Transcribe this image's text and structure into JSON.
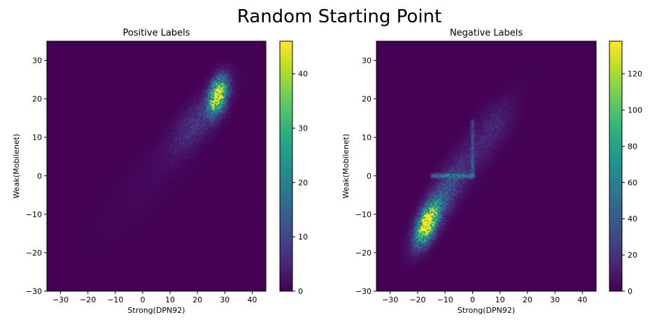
{
  "chart_data": {
    "suptitle": "Random Starting Point",
    "panels": [
      {
        "type": "heatmap",
        "title": "Positive Labels",
        "xlabel": "Strong(DPN92)",
        "ylabel": "Weak(Mobilenet)",
        "xlim": [
          -35,
          45
        ],
        "ylim": [
          -30,
          35
        ],
        "xticks": [
          -30,
          -20,
          -10,
          0,
          10,
          20,
          30,
          40
        ],
        "yticks": [
          -30,
          -20,
          -10,
          0,
          10,
          20,
          30
        ],
        "colormap": "viridis",
        "colorbar": {
          "min": 0,
          "max": 46,
          "ticks": [
            0,
            10,
            20,
            30,
            40
          ]
        },
        "clusters": [
          {
            "x": 27.5,
            "y": 21,
            "sx": 2.2,
            "sy": 3.0,
            "rho": 0.35,
            "peak": 46
          },
          {
            "x": 21,
            "y": 15,
            "sx": 6.5,
            "sy": 5.5,
            "rho": 0.75,
            "peak": 7
          },
          {
            "x": 6,
            "y": 2,
            "sx": 14,
            "sy": 11,
            "rho": 0.85,
            "peak": 1.2
          }
        ],
        "segments": []
      },
      {
        "type": "heatmap",
        "title": "Negative Labels",
        "xlabel": "Strong(DPN92)",
        "ylabel": "Weak(Mobilenet)",
        "xlim": [
          -35,
          45
        ],
        "ylim": [
          -30,
          35
        ],
        "xticks": [
          -30,
          -20,
          -10,
          0,
          10,
          20,
          30,
          40
        ],
        "yticks": [
          -30,
          -20,
          -10,
          0,
          10,
          20,
          30
        ],
        "colormap": "viridis",
        "colorbar": {
          "min": 0,
          "max": 138,
          "ticks": [
            0,
            20,
            40,
            60,
            80,
            100,
            120
          ]
        },
        "clusters": [
          {
            "x": -16.5,
            "y": -12.5,
            "sx": 2.6,
            "sy": 3.4,
            "rho": 0.55,
            "peak": 138
          },
          {
            "x": -12,
            "y": -7,
            "sx": 5.5,
            "sy": 6.5,
            "rho": 0.8,
            "peak": 32
          },
          {
            "x": -2,
            "y": 3,
            "sx": 10,
            "sy": 10,
            "rho": 0.88,
            "peak": 10
          },
          {
            "x": 8,
            "y": 13,
            "sx": 5,
            "sy": 4.5,
            "rho": 0.5,
            "peak": 8
          }
        ],
        "segments": [
          {
            "x1": -14.5,
            "y1": 0,
            "x2": 0,
            "y2": 0,
            "peak": 42
          },
          {
            "x1": 0,
            "y1": 0,
            "x2": 0,
            "y2": 14,
            "peak": 32
          }
        ]
      }
    ]
  }
}
